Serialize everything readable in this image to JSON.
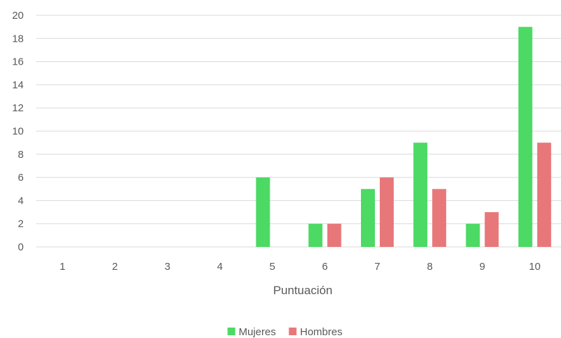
{
  "chart_data": {
    "type": "bar",
    "categories": [
      "1",
      "2",
      "3",
      "4",
      "5",
      "6",
      "7",
      "8",
      "9",
      "10"
    ],
    "series": [
      {
        "name": "Mujeres",
        "color": "#4cd964",
        "values": [
          0,
          0,
          0,
          0,
          6,
          2,
          5,
          9,
          2,
          19
        ]
      },
      {
        "name": "Hombres",
        "color": "#e8777a",
        "values": [
          0,
          0,
          0,
          0,
          0,
          2,
          6,
          5,
          3,
          9
        ]
      }
    ],
    "xlabel": "Puntuación",
    "ylabel": "",
    "ylim": [
      0,
      20
    ],
    "yticks": [
      0,
      2,
      4,
      6,
      8,
      10,
      12,
      14,
      16,
      18,
      20
    ],
    "grid": true,
    "gridColor": "#d9d9d9",
    "legend_position": "bottom"
  }
}
